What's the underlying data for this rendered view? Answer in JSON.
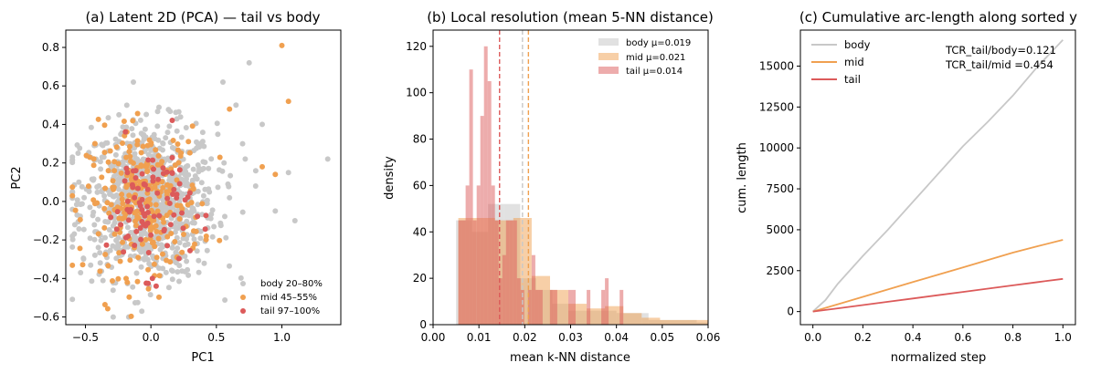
{
  "colors": {
    "body": "#c8c8c8",
    "mid": "#f0a050",
    "tail": "#dc5a5a"
  },
  "chart_data": [
    {
      "type": "scatter",
      "title": "(a) Latent 2D (PCA) — tail vs body",
      "xlabel": "PC1",
      "ylabel": "PC2",
      "xlim": [
        -0.65,
        1.45
      ],
      "ylim": [
        -0.64,
        0.89
      ],
      "xticks": [
        -0.5,
        0.0,
        0.5,
        1.0
      ],
      "xtick_labels": [
        "−0.5",
        "0.0",
        "0.5",
        "1.0"
      ],
      "yticks": [
        -0.6,
        -0.4,
        -0.2,
        0.0,
        0.2,
        0.4,
        0.6,
        0.8
      ],
      "ytick_labels": [
        "−0.6",
        "−0.4",
        "−0.2",
        "0.0",
        "0.2",
        "0.4",
        "0.6",
        "0.8"
      ],
      "legend": [
        "body 20–80%",
        "mid 45–55%",
        "tail 97–100%"
      ],
      "legend_loc": "lower-right",
      "series": [
        {
          "name": "body",
          "n": 900,
          "center": [
            -0.02,
            0.0
          ],
          "spread": [
            0.26,
            0.2
          ],
          "outliers": [
            [
              1.35,
              0.22
            ],
            [
              0.85,
              0.4
            ],
            [
              0.75,
              0.72
            ],
            [
              1.05,
              0.15
            ],
            [
              0.72,
              0.22
            ],
            [
              -0.55,
              0.1
            ],
            [
              -0.6,
              0.05
            ],
            [
              0.95,
              -0.05
            ],
            [
              1.1,
              -0.1
            ],
            [
              0.8,
              0.08
            ],
            [
              0.65,
              0.5
            ],
            [
              0.7,
              0.3
            ],
            [
              0.55,
              0.62
            ]
          ]
        },
        {
          "name": "mid",
          "n": 260,
          "center": [
            -0.05,
            0.0
          ],
          "spread": [
            0.22,
            0.19
          ],
          "outliers": [
            [
              1.0,
              0.81
            ],
            [
              1.05,
              0.52
            ],
            [
              0.95,
              0.14
            ],
            [
              0.6,
              0.48
            ],
            [
              0.85,
              0.18
            ]
          ]
        },
        {
          "name": "tail",
          "n": 90,
          "center": [
            -0.02,
            -0.02
          ],
          "spread": [
            0.16,
            0.17
          ],
          "outliers": []
        }
      ]
    },
    {
      "type": "histogram",
      "title": "(b) Local resolution (mean 5-NN distance)",
      "xlabel": "mean k-NN distance",
      "ylabel": "density",
      "xlim": [
        0.0,
        0.06
      ],
      "ylim": [
        0,
        127
      ],
      "xticks": [
        0.0,
        0.01,
        0.02,
        0.03,
        0.04,
        0.05,
        0.06
      ],
      "xtick_labels": [
        "0.00",
        "0.01",
        "0.02",
        "0.03",
        "0.04",
        "0.05",
        "0.06"
      ],
      "yticks": [
        0,
        20,
        40,
        60,
        80,
        100,
        120
      ],
      "ytick_labels": [
        "0",
        "20",
        "40",
        "60",
        "80",
        "100",
        "120"
      ],
      "legend_loc": "top-right",
      "series": [
        {
          "name": "body",
          "legend": "body μ=0.019",
          "mean": 0.0195,
          "opacity": 0.55,
          "bins": [
            [
              0.005,
              0.0085,
              45
            ],
            [
              0.0085,
              0.012,
              40
            ],
            [
              0.012,
              0.0155,
              52
            ],
            [
              0.0155,
              0.019,
              52
            ],
            [
              0.019,
              0.0225,
              20
            ],
            [
              0.0225,
              0.026,
              15
            ],
            [
              0.026,
              0.0295,
              9
            ],
            [
              0.0295,
              0.033,
              6
            ],
            [
              0.033,
              0.0365,
              6
            ],
            [
              0.0365,
              0.04,
              6
            ],
            [
              0.04,
              0.0435,
              5
            ],
            [
              0.0435,
              0.047,
              5
            ],
            [
              0.047,
              0.0505,
              2
            ],
            [
              0.0505,
              0.054,
              2
            ],
            [
              0.054,
              0.0575,
              2
            ],
            [
              0.0575,
              0.06,
              1
            ]
          ]
        },
        {
          "name": "mid",
          "legend": "mid μ=0.021",
          "mean": 0.0208,
          "opacity": 0.5,
          "bins": [
            [
              0.0055,
              0.0095,
              46
            ],
            [
              0.0095,
              0.0135,
              46
            ],
            [
              0.0135,
              0.0175,
              45
            ],
            [
              0.0175,
              0.0215,
              46
            ],
            [
              0.0215,
              0.0255,
              21
            ],
            [
              0.0255,
              0.0295,
              15
            ],
            [
              0.0295,
              0.0335,
              9
            ],
            [
              0.0335,
              0.0375,
              7
            ],
            [
              0.0375,
              0.0415,
              8
            ],
            [
              0.0415,
              0.0455,
              5
            ],
            [
              0.0455,
              0.0495,
              3
            ],
            [
              0.0495,
              0.0535,
              2
            ],
            [
              0.0535,
              0.0575,
              2
            ],
            [
              0.0575,
              0.06,
              2
            ]
          ]
        },
        {
          "name": "tail",
          "legend": "tail μ=0.014",
          "mean": 0.0145,
          "opacity": 0.5,
          "bins": [
            [
              0.0055,
              0.0063,
              45
            ],
            [
              0.0063,
              0.0071,
              45
            ],
            [
              0.0071,
              0.0079,
              60
            ],
            [
              0.0079,
              0.0087,
              110
            ],
            [
              0.0087,
              0.0095,
              45
            ],
            [
              0.0095,
              0.0103,
              60
            ],
            [
              0.0103,
              0.0111,
              90
            ],
            [
              0.0111,
              0.0119,
              120
            ],
            [
              0.0119,
              0.0127,
              105
            ],
            [
              0.0127,
              0.0135,
              60
            ],
            [
              0.0135,
              0.0143,
              45
            ],
            [
              0.0143,
              0.0151,
              20
            ],
            [
              0.0151,
              0.0159,
              30
            ],
            [
              0.0159,
              0.0167,
              45
            ],
            [
              0.0167,
              0.0175,
              45
            ],
            [
              0.0175,
              0.0183,
              45
            ],
            [
              0.0183,
              0.0191,
              20
            ],
            [
              0.0191,
              0.0199,
              15
            ],
            [
              0.0207,
              0.0215,
              15
            ],
            [
              0.0215,
              0.0223,
              30
            ],
            [
              0.0223,
              0.0231,
              15
            ],
            [
              0.0231,
              0.0239,
              15
            ],
            [
              0.0255,
              0.0263,
              15
            ],
            [
              0.0263,
              0.0271,
              15
            ],
            [
              0.0295,
              0.0303,
              15
            ],
            [
              0.0303,
              0.0311,
              15
            ],
            [
              0.0335,
              0.0343,
              15
            ],
            [
              0.0367,
              0.0375,
              15
            ],
            [
              0.0375,
              0.0383,
              20
            ],
            [
              0.0407,
              0.0415,
              15
            ]
          ]
        }
      ]
    },
    {
      "type": "line",
      "title": "(c) Cumulative arc-length along sorted y",
      "xlabel": "normalized step",
      "ylabel": "cum. length",
      "xlim": [
        -0.05,
        1.05
      ],
      "ylim": [
        -800,
        17200
      ],
      "xticks": [
        0.0,
        0.2,
        0.4,
        0.6,
        0.8,
        1.0
      ],
      "xtick_labels": [
        "0.0",
        "0.2",
        "0.4",
        "0.6",
        "0.8",
        "1.0"
      ],
      "yticks": [
        0,
        2500,
        5000,
        7500,
        10000,
        12500,
        15000
      ],
      "ytick_labels": [
        "0",
        "2500",
        "5000",
        "7500",
        "10000",
        "12500",
        "15000"
      ],
      "legend_loc": "top-left",
      "annotations": [
        "TCR_tail/body=0.121",
        "TCR_tail/mid =0.454"
      ],
      "series": [
        {
          "name": "body",
          "x": [
            0.0,
            0.05,
            0.1,
            0.2,
            0.3,
            0.4,
            0.5,
            0.6,
            0.7,
            0.8,
            0.9,
            1.0
          ],
          "y": [
            0,
            700,
            1700,
            3400,
            5000,
            6700,
            8400,
            10100,
            11600,
            13200,
            15000,
            16600
          ]
        },
        {
          "name": "mid",
          "x": [
            0.0,
            0.1,
            0.2,
            0.3,
            0.4,
            0.5,
            0.6,
            0.7,
            0.8,
            0.9,
            1.0
          ],
          "y": [
            0,
            450,
            900,
            1350,
            1800,
            2250,
            2700,
            3150,
            3600,
            4000,
            4380
          ]
        },
        {
          "name": "tail",
          "x": [
            0.0,
            0.1,
            0.2,
            0.3,
            0.4,
            0.5,
            0.6,
            0.7,
            0.8,
            0.9,
            1.0
          ],
          "y": [
            0,
            200,
            400,
            600,
            800,
            1000,
            1200,
            1400,
            1600,
            1800,
            2000
          ]
        }
      ]
    }
  ]
}
